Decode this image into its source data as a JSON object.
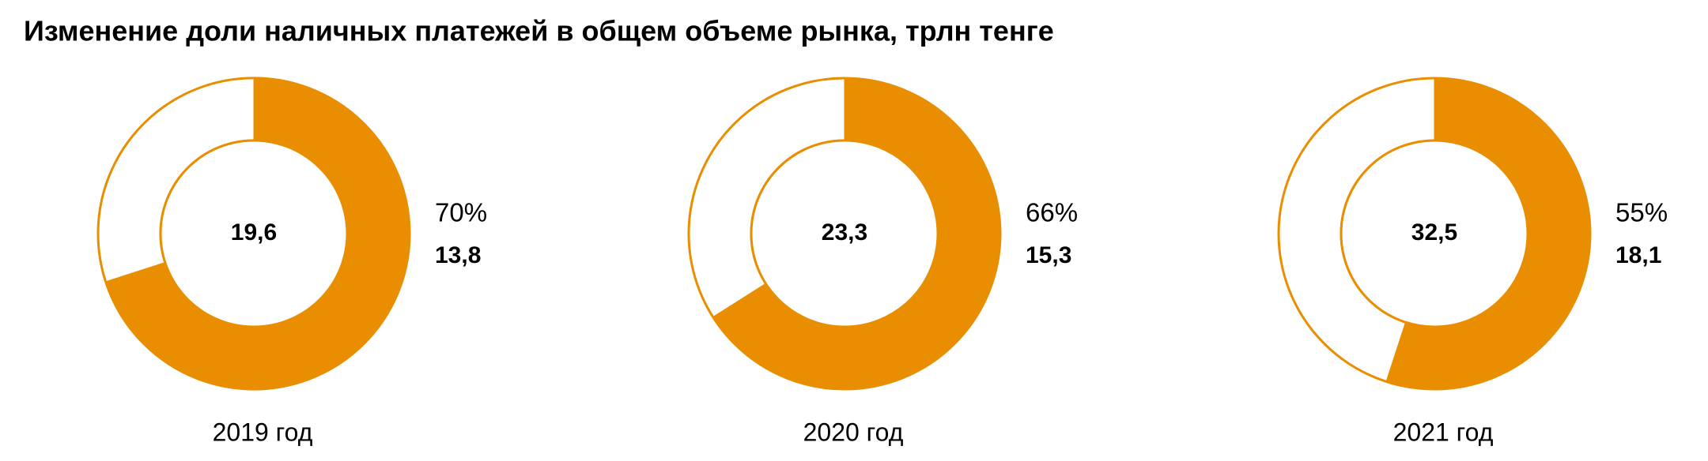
{
  "title": "Изменение доли наличных платежей в общем объеме рынка, трлн тенге",
  "chart_data": [
    {
      "type": "pie",
      "title": "2019 год",
      "values": [
        70
      ],
      "value_labels": [
        "70%"
      ],
      "amount": 13.8,
      "amount_label": "13,8",
      "total": 19.6,
      "total_label": "19,6",
      "color": "#e88e00"
    },
    {
      "type": "pie",
      "title": "2020 год",
      "values": [
        66
      ],
      "value_labels": [
        "66%"
      ],
      "amount": 15.3,
      "amount_label": "15,3",
      "total": 23.3,
      "total_label": "23,3",
      "color": "#e88e00"
    },
    {
      "type": "pie",
      "title": "2021 год",
      "values": [
        55
      ],
      "value_labels": [
        "55%"
      ],
      "amount": 18.1,
      "amount_label": "18,1",
      "total": 32.5,
      "total_label": "32,5",
      "color": "#e88e00"
    }
  ]
}
